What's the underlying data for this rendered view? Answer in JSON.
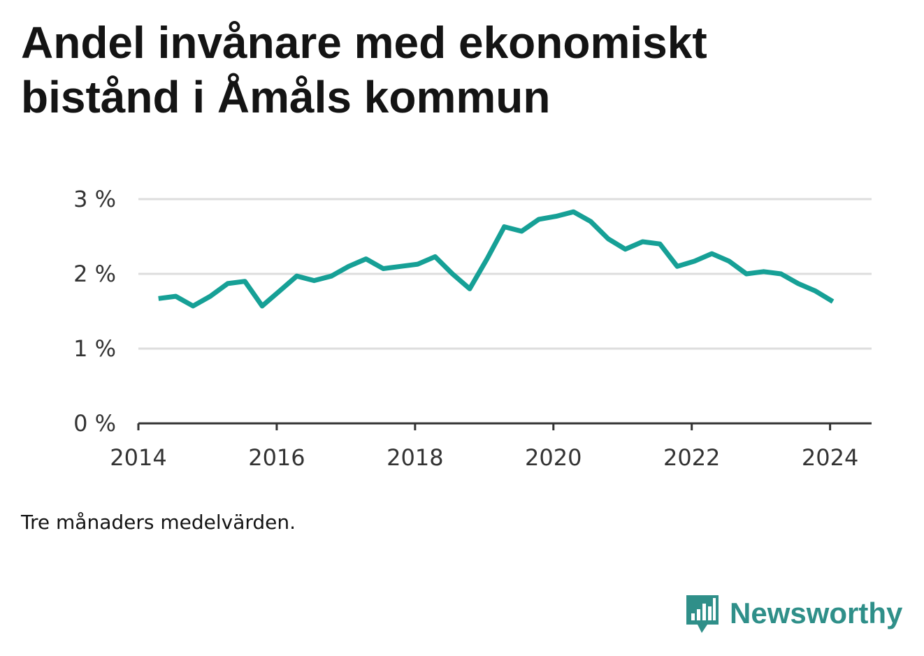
{
  "title": "Andel invånare med ekonomiskt bistånd i Åmåls kommun",
  "note": "Tre månaders medelvärden.",
  "brand": {
    "name": "Newsworthy",
    "logo_icon": "bar-chart-speech-bubble-icon",
    "color": "#2f8f89"
  },
  "colors": {
    "line": "#16a096",
    "grid": "#dddddd",
    "axis": "#333333"
  },
  "chart_data": {
    "type": "line",
    "title": "Andel invånare med ekonomiskt bistånd i Åmåls kommun",
    "xlabel": "",
    "ylabel": "",
    "grid": true,
    "xlim": [
      2014.0,
      2024.6
    ],
    "ylim": [
      0,
      3
    ],
    "x_ticks": [
      2014,
      2016,
      2018,
      2020,
      2022,
      2024
    ],
    "x_tick_labels": [
      "2014",
      "2016",
      "2018",
      "2020",
      "2022",
      "2024"
    ],
    "y_ticks": [
      0,
      1,
      2,
      3
    ],
    "y_tick_labels": [
      "0 %",
      "1 %",
      "2 %",
      "3 %"
    ],
    "series": [
      {
        "values_unit": "%",
        "x": [
          2014.29,
          2014.54,
          2014.79,
          2015.04,
          2015.29,
          2015.54,
          2015.79,
          2016.04,
          2016.29,
          2016.54,
          2016.79,
          2017.04,
          2017.29,
          2017.54,
          2017.79,
          2018.04,
          2018.29,
          2018.54,
          2018.79,
          2019.04,
          2019.29,
          2019.54,
          2019.79,
          2020.04,
          2020.29,
          2020.54,
          2020.79,
          2021.04,
          2021.29,
          2021.54,
          2021.79,
          2022.04,
          2022.29,
          2022.54,
          2022.79,
          2023.04,
          2023.29,
          2023.54,
          2023.79,
          2024.04
        ],
        "values": [
          1.67,
          1.7,
          1.57,
          1.7,
          1.87,
          1.9,
          1.57,
          1.77,
          1.97,
          1.91,
          1.97,
          2.1,
          2.2,
          2.07,
          2.1,
          2.13,
          2.23,
          2.0,
          1.8,
          2.2,
          2.63,
          2.57,
          2.73,
          2.77,
          2.83,
          2.7,
          2.47,
          2.33,
          2.43,
          2.4,
          2.1,
          2.17,
          2.27,
          2.17,
          2.0,
          2.03,
          2.0,
          1.87,
          1.77,
          1.63
        ]
      }
    ]
  }
}
